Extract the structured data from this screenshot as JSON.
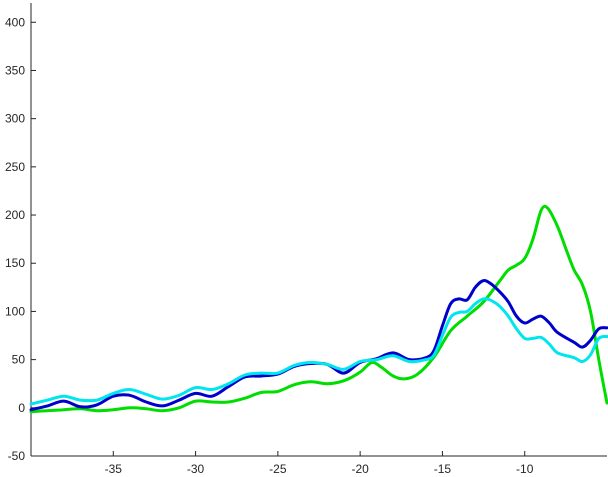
{
  "chart_data": {
    "type": "line",
    "title": "",
    "xlabel": "",
    "ylabel": "",
    "xlim": [
      -40,
      -5
    ],
    "ylim": [
      -50,
      420
    ],
    "grid": false,
    "legend": "none",
    "x_ticks": [
      -35,
      -30,
      -25,
      -20,
      -15,
      -10
    ],
    "y_ticks": [
      -50,
      0,
      50,
      100,
      150,
      200,
      250,
      300,
      350,
      400
    ],
    "x_tick_labels": [
      "-35",
      "-30",
      "-25",
      "-20",
      "-15",
      "-10"
    ],
    "y_tick_labels": [
      "-50",
      "0",
      "50",
      "100",
      "150",
      "200",
      "250",
      "300",
      "350",
      "400"
    ],
    "series": [
      {
        "color": "#00dd00",
        "points": [
          [
            -40,
            -4
          ],
          [
            -39,
            -3
          ],
          [
            -38,
            -2
          ],
          [
            -37,
            -1
          ],
          [
            -36,
            -3
          ],
          [
            -35,
            -2
          ],
          [
            -34,
            0
          ],
          [
            -33,
            -1
          ],
          [
            -32,
            -3
          ],
          [
            -31,
            0
          ],
          [
            -30,
            7
          ],
          [
            -29,
            6
          ],
          [
            -28,
            6
          ],
          [
            -27,
            10
          ],
          [
            -26,
            16
          ],
          [
            -25,
            17
          ],
          [
            -24,
            24
          ],
          [
            -23,
            27
          ],
          [
            -22,
            25
          ],
          [
            -21,
            28
          ],
          [
            -20,
            37
          ],
          [
            -19.3,
            47
          ],
          [
            -18.7,
            42
          ],
          [
            -18,
            33
          ],
          [
            -17.3,
            30
          ],
          [
            -16.5,
            35
          ],
          [
            -15.5,
            53
          ],
          [
            -14.5,
            80
          ],
          [
            -13.5,
            95
          ],
          [
            -12.5,
            110
          ],
          [
            -11.5,
            132
          ],
          [
            -11,
            143
          ],
          [
            -10.5,
            148
          ],
          [
            -10,
            155
          ],
          [
            -9.5,
            175
          ],
          [
            -9,
            205
          ],
          [
            -8.6,
            207
          ],
          [
            -8,
            188
          ],
          [
            -7.5,
            165
          ],
          [
            -7,
            143
          ],
          [
            -6.5,
            128
          ],
          [
            -6,
            100
          ],
          [
            -5.5,
            50
          ],
          [
            -5,
            5
          ]
        ]
      },
      {
        "color": "#0000cc",
        "points": [
          [
            -40,
            -2
          ],
          [
            -39,
            2
          ],
          [
            -38,
            7
          ],
          [
            -37,
            1
          ],
          [
            -36,
            3
          ],
          [
            -35,
            12
          ],
          [
            -34,
            13
          ],
          [
            -33,
            6
          ],
          [
            -32,
            2
          ],
          [
            -31,
            8
          ],
          [
            -30,
            15
          ],
          [
            -29,
            12
          ],
          [
            -28,
            22
          ],
          [
            -27,
            32
          ],
          [
            -26,
            33
          ],
          [
            -25,
            35
          ],
          [
            -24,
            43
          ],
          [
            -23,
            46
          ],
          [
            -22,
            45
          ],
          [
            -21,
            36
          ],
          [
            -20,
            47
          ],
          [
            -19,
            51
          ],
          [
            -18,
            57
          ],
          [
            -17,
            50
          ],
          [
            -16,
            52
          ],
          [
            -15.5,
            60
          ],
          [
            -15,
            85
          ],
          [
            -14.5,
            108
          ],
          [
            -14,
            113
          ],
          [
            -13.5,
            112
          ],
          [
            -13,
            125
          ],
          [
            -12.5,
            132
          ],
          [
            -12,
            128
          ],
          [
            -11.5,
            120
          ],
          [
            -11,
            110
          ],
          [
            -10.5,
            95
          ],
          [
            -10,
            88
          ],
          [
            -9.5,
            92
          ],
          [
            -9,
            95
          ],
          [
            -8.5,
            88
          ],
          [
            -8,
            78
          ],
          [
            -7,
            68
          ],
          [
            -6.5,
            63
          ],
          [
            -6,
            70
          ],
          [
            -5.5,
            82
          ],
          [
            -5,
            83
          ]
        ]
      },
      {
        "color": "#00e5ee",
        "points": [
          [
            -40,
            4
          ],
          [
            -39,
            8
          ],
          [
            -38,
            12
          ],
          [
            -37,
            8
          ],
          [
            -36,
            8
          ],
          [
            -35,
            15
          ],
          [
            -34,
            19
          ],
          [
            -33,
            14
          ],
          [
            -32,
            9
          ],
          [
            -31,
            13
          ],
          [
            -30,
            21
          ],
          [
            -29,
            19
          ],
          [
            -28,
            25
          ],
          [
            -27,
            34
          ],
          [
            -26,
            36
          ],
          [
            -25,
            36
          ],
          [
            -24,
            44
          ],
          [
            -23,
            47
          ],
          [
            -22,
            45
          ],
          [
            -21,
            40
          ],
          [
            -20,
            48
          ],
          [
            -19,
            50
          ],
          [
            -18,
            54
          ],
          [
            -17,
            48
          ],
          [
            -16,
            50
          ],
          [
            -15.5,
            55
          ],
          [
            -15,
            75
          ],
          [
            -14.5,
            94
          ],
          [
            -14,
            99
          ],
          [
            -13.5,
            100
          ],
          [
            -13,
            108
          ],
          [
            -12.5,
            113
          ],
          [
            -12,
            111
          ],
          [
            -11.5,
            105
          ],
          [
            -11,
            95
          ],
          [
            -10.5,
            82
          ],
          [
            -10,
            72
          ],
          [
            -9.5,
            72
          ],
          [
            -9,
            73
          ],
          [
            -8.5,
            66
          ],
          [
            -8,
            57
          ],
          [
            -7,
            52
          ],
          [
            -6.5,
            48
          ],
          [
            -6,
            55
          ],
          [
            -5.5,
            72
          ],
          [
            -5,
            74
          ]
        ]
      }
    ]
  }
}
